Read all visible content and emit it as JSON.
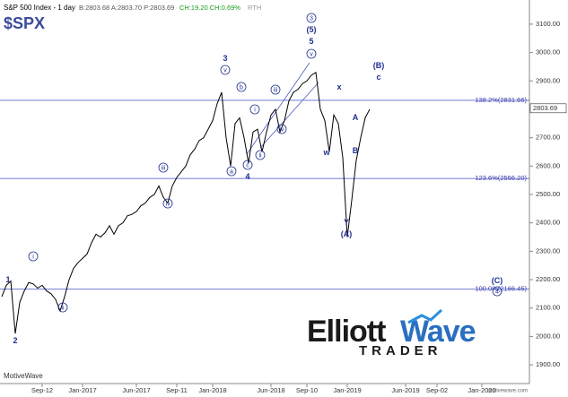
{
  "chart_data": {
    "type": "line",
    "title": "S&P 500 Index - 1 day",
    "quote": "B:2803.68 A:2803.70 P:2803.69",
    "change": "CH:19.20 CH:0.69%",
    "session": "RTH",
    "symbol": "$SPX",
    "watermark": "MotiveWave",
    "site": "motivewave.com",
    "logo": {
      "word1": "Elliott",
      "word2": "Wave",
      "word3": "TRADER"
    },
    "last_price": 2803.69,
    "categories": [
      null,
      null,
      null,
      null,
      null,
      null,
      null,
      null,
      null,
      "Sep-12",
      null,
      null,
      null,
      null,
      null,
      null,
      null,
      null,
      "Jan-2017",
      null,
      null,
      null,
      null,
      null,
      null,
      null,
      null,
      null,
      null,
      null,
      "Jun-2017",
      null,
      null,
      null,
      null,
      null,
      null,
      null,
      null,
      "Sep-11",
      null,
      null,
      null,
      null,
      null,
      null,
      null,
      "Jan-2018",
      null,
      null,
      null,
      null,
      null,
      null,
      null,
      null,
      null,
      null,
      null,
      null,
      "Jun-2018",
      null,
      null,
      null,
      null,
      null,
      null,
      null,
      "Sep-10",
      null,
      null,
      null,
      null,
      null,
      null,
      null,
      null,
      "Jan-2019",
      null,
      null,
      null,
      null,
      null,
      null,
      null,
      null,
      null,
      null,
      null,
      null,
      "Jun-2019",
      null,
      null,
      null,
      null,
      null,
      null,
      "Sep-02",
      null,
      null,
      null,
      null,
      null,
      null,
      null,
      null,
      null,
      "Jan-2020",
      null,
      null,
      null,
      null,
      null,
      null,
      null,
      null,
      null,
      null
    ],
    "series": [
      {
        "name": "S&P 500",
        "color": "#000000",
        "values": [
          2140,
          2180,
          2195,
          2010,
          2120,
          2160,
          2190,
          2185,
          2170,
          2180,
          2160,
          2150,
          2130,
          2090,
          2140,
          2200,
          2240,
          2260,
          2275,
          2290,
          2330,
          2360,
          2350,
          2365,
          2390,
          2360,
          2390,
          2400,
          2425,
          2430,
          2440,
          2460,
          2470,
          2490,
          2500,
          2530,
          2490,
          2470,
          2530,
          2560,
          2580,
          2600,
          2640,
          2660,
          2690,
          2700,
          2730,
          2760,
          2820,
          2860,
          2700,
          2600,
          2750,
          2770,
          2700,
          2610,
          2720,
          2730,
          2650,
          2720,
          2780,
          2800,
          2720,
          2760,
          2830,
          2860,
          2870,
          2890,
          2900,
          2920,
          2930,
          2800,
          2760,
          2650,
          2780,
          2750,
          2630,
          2350,
          2480,
          2620,
          2700,
          2770,
          2800,
          null,
          null,
          null,
          null,
          null,
          null,
          null,
          null,
          null,
          null,
          null,
          null,
          null,
          null,
          null,
          null,
          null,
          null,
          null,
          null,
          null,
          null,
          null,
          null,
          null,
          null,
          null,
          null,
          null,
          null,
          null,
          null,
          null,
          null,
          null
        ]
      }
    ],
    "ylim": [
      1834,
      3185
    ],
    "yticks": [
      {
        "value": 1900,
        "label": "1900.00"
      },
      {
        "value": 2000,
        "label": "2000.00"
      },
      {
        "value": 2100,
        "label": "2100.00"
      },
      {
        "value": 2200,
        "label": "2200.00"
      },
      {
        "value": 2300,
        "label": "2300.00"
      },
      {
        "value": 2400,
        "label": "2400.00"
      },
      {
        "value": 2500,
        "label": "2500.00"
      },
      {
        "value": 2600,
        "label": "2600.00"
      },
      {
        "value": 2700,
        "label": "2700.00"
      },
      {
        "value": 2800,
        "label": "2800.00"
      },
      {
        "value": 2900,
        "label": "2900.00"
      },
      {
        "value": 3000,
        "label": "3000.00"
      },
      {
        "value": 3100,
        "label": "3100.00"
      }
    ],
    "levels": [
      {
        "value": 2831.66,
        "label": "138.2%(2831.66)"
      },
      {
        "value": 2556.2,
        "label": "123.6%(2556.20)"
      },
      {
        "value": 2166.45,
        "label": "100.0%(2166.45)"
      }
    ],
    "annotations": [
      "1",
      "2",
      "i",
      "ii",
      "iii",
      "iv",
      "3",
      "v",
      "b",
      "a",
      "c",
      "4",
      "i",
      "ii",
      "iii",
      "iv",
      "v",
      "5",
      "(5)",
      "3",
      "x",
      "w",
      "B",
      "A",
      "Y",
      "(A)",
      "(B)",
      "c",
      "(C)",
      "4"
    ]
  }
}
